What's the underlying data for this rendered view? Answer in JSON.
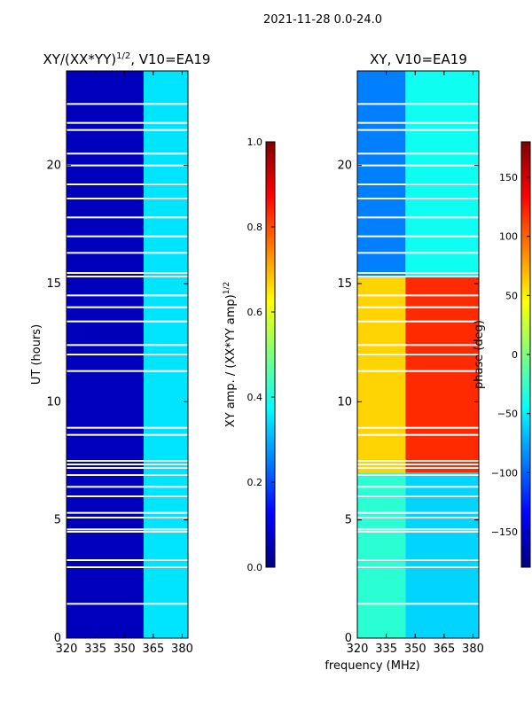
{
  "suptitle": "2021-11-28 0.0-24.0",
  "colors": {
    "jet": [
      "#00007f",
      "#0000ff",
      "#007fff",
      "#00ffff",
      "#7fff7f",
      "#ffff00",
      "#ff7f00",
      "#ff0000",
      "#7f0000"
    ],
    "axis": "#000000",
    "gap": "#ffffff"
  },
  "chart_data": [
    {
      "type": "heatmap",
      "title_main": "XY/(XX*YY)",
      "title_sup": "1/2",
      "title_tail": ", V10=EA19",
      "ylabel": "UT (hours)",
      "xlabel": "",
      "xlim": [
        320,
        383
      ],
      "ylim": [
        0,
        24
      ],
      "xticks": [
        320,
        335,
        350,
        365,
        380
      ],
      "yticks": [
        0,
        5,
        10,
        15,
        20
      ],
      "colorbar": {
        "label_main": "XY amp. / (XX*YY amp)",
        "label_sup": "1/2",
        "range": [
          0.0,
          1.0
        ],
        "ticks": [
          "0.0",
          "0.2",
          "0.4",
          "0.6",
          "0.8",
          "1.0"
        ],
        "tick_values": [
          0.0,
          0.2,
          0.4,
          0.6,
          0.8,
          1.0
        ]
      },
      "description": "low amplitude (~0.05) below 360 MHz; 360-383 MHz band amplitude 0.2-0.5",
      "bands": [
        {
          "f_start": 320,
          "f_end": 360,
          "value": 0.06
        },
        {
          "f_start": 360,
          "f_end": 383,
          "value": 0.35
        }
      ]
    },
    {
      "type": "heatmap",
      "title_main": "XY, V10=EA19",
      "ylabel": "",
      "xlabel": "frequency (MHz)",
      "xlim": [
        320,
        383
      ],
      "ylim": [
        0,
        24
      ],
      "xticks": [
        320,
        335,
        350,
        365,
        380
      ],
      "yticks": [
        0,
        5,
        10,
        15,
        20
      ],
      "colorbar": {
        "label_main": "phase (deg)",
        "range": [
          -180,
          180
        ],
        "ticks": [
          "150",
          "100",
          "50",
          "0",
          "−50",
          "−100",
          "−150"
        ],
        "tick_values": [
          150,
          100,
          50,
          0,
          -50,
          -100,
          -150
        ]
      },
      "regions": [
        {
          "ut_start": 0,
          "ut_end": 7,
          "f_start": 320,
          "f_end": 345,
          "value": -30
        },
        {
          "ut_start": 0,
          "ut_end": 7,
          "f_start": 345,
          "f_end": 383,
          "value": -60
        },
        {
          "ut_start": 7,
          "ut_end": 15.3,
          "f_start": 320,
          "f_end": 345,
          "value": 60
        },
        {
          "ut_start": 7,
          "ut_end": 15.3,
          "f_start": 345,
          "f_end": 383,
          "value": 120
        },
        {
          "ut_start": 15.3,
          "ut_end": 24,
          "f_start": 320,
          "f_end": 345,
          "value": -90
        },
        {
          "ut_start": 15.3,
          "ut_end": 24,
          "f_start": 345,
          "f_end": 383,
          "value": -40
        }
      ]
    }
  ],
  "flag_gaps_ut": [
    1.45,
    3.0,
    3.3,
    4.5,
    4.6,
    5.1,
    5.3,
    6.0,
    6.4,
    6.9,
    7.2,
    7.35,
    7.5,
    8.6,
    8.9,
    11.3,
    12.0,
    12.4,
    13.4,
    14.0,
    14.5,
    15.3,
    15.45,
    16.3,
    17.0,
    17.8,
    18.6,
    19.2,
    20.0,
    20.5,
    21.5,
    21.8,
    22.6
  ]
}
